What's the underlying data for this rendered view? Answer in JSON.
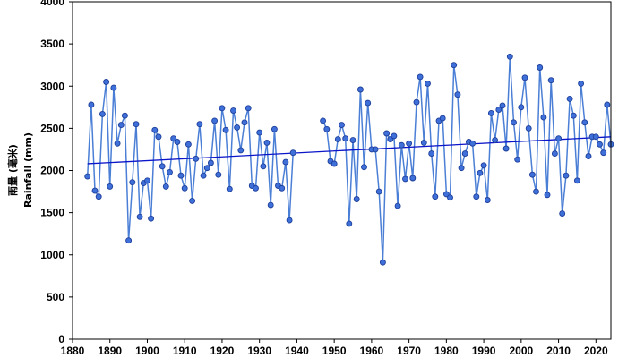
{
  "chart_data": {
    "type": "line",
    "ylabel": "雨量 (毫米)",
    "ylabel_en": "Rainfall (mm)",
    "xlim": [
      1880,
      2024
    ],
    "ylim": [
      0,
      4000
    ],
    "x_ticks": [
      "1880",
      "1890",
      "1900",
      "1910",
      "1920",
      "1930",
      "1940",
      "1950",
      "1960",
      "1970",
      "1980",
      "1990",
      "2000",
      "2010",
      "2020"
    ],
    "y_ticks": [
      "0",
      "500",
      "1000",
      "1500",
      "2000",
      "2500",
      "3000",
      "3500",
      "4000"
    ],
    "grid": false,
    "colors": {
      "line": "#4b7fd6",
      "marker_fill": "#3f6fd8",
      "marker_edge": "#1d3f9a",
      "trend": "#0a14c8",
      "axis": "#000000"
    },
    "series": [
      {
        "x": [
          1884,
          1885,
          1886,
          1887,
          1888,
          1889,
          1890,
          1891,
          1892,
          1893,
          1894,
          1895,
          1896,
          1897,
          1898,
          1899,
          1900,
          1901,
          1902,
          1903,
          1904,
          1905,
          1906,
          1907,
          1908,
          1909,
          1910,
          1911,
          1912,
          1913,
          1914,
          1915,
          1916,
          1917,
          1918,
          1919,
          1920,
          1921,
          1922,
          1923,
          1924,
          1925,
          1926,
          1927,
          1928,
          1929,
          1930,
          1931,
          1932,
          1933,
          1934,
          1935,
          1936,
          1937,
          1938,
          1939,
          1940
        ],
        "y": [
          1930,
          2780,
          1760,
          1690,
          2670,
          3050,
          1810,
          2980,
          2320,
          2540,
          2650,
          1170,
          1860,
          2550,
          1450,
          1850,
          1880,
          1430,
          2480,
          2400,
          2050,
          1810,
          1980,
          2380,
          2340,
          1940,
          1790,
          2310,
          1640,
          2140,
          2550,
          1940,
          2030,
          2090,
          2590,
          1950,
          2740,
          2480,
          1780,
          2710,
          2510,
          2240,
          2570,
          2740,
          1820,
          1790,
          2450,
          2050,
          2330,
          1590,
          2490,
          1820,
          1790,
          2100,
          1410,
          2210,
          null
        ]
      },
      {
        "x": [
          1947,
          1948,
          1949,
          1950,
          1951,
          1952,
          1953,
          1954,
          1955,
          1956,
          1957,
          1958,
          1959,
          1960,
          1961,
          1962,
          1963,
          1964,
          1965,
          1966,
          1967,
          1968,
          1969,
          1970,
          1971,
          1972,
          1973,
          1974,
          1975,
          1976,
          1977,
          1978,
          1979,
          1980,
          1981,
          1982,
          1983,
          1984,
          1985,
          1986,
          1987,
          1988,
          1989,
          1990,
          1991,
          1992,
          1993,
          1994,
          1995,
          1996,
          1997,
          1998,
          1999,
          2000,
          2001,
          2002,
          2003,
          2004,
          2005,
          2006,
          2007,
          2008,
          2009,
          2010,
          2011,
          2012,
          2013,
          2014,
          2015,
          2016,
          2017,
          2018,
          2019,
          2020,
          2021,
          2022,
          2023,
          2024
        ],
        "y": [
          2590,
          2490,
          2110,
          2080,
          2370,
          2540,
          2380,
          1370,
          2360,
          1660,
          2960,
          2040,
          2800,
          2250,
          2250,
          1750,
          910,
          2440,
          2370,
          2410,
          1580,
          2300,
          1900,
          2320,
          1910,
          2810,
          3110,
          2330,
          3030,
          2200,
          1690,
          2590,
          2620,
          1720,
          1680,
          3250,
          2900,
          2030,
          2200,
          2340,
          2320,
          1690,
          1970,
          2060,
          1650,
          2680,
          2360,
          2720,
          2770,
          2260,
          3350,
          2570,
          2130,
          2750,
          3100,
          2500,
          1950,
          1750,
          3220,
          2630,
          1710,
          3070,
          2200,
          2380,
          1490,
          1940,
          2850,
          2650,
          1880,
          3030,
          2570,
          2170,
          2400,
          2400,
          2310,
          2210,
          2780,
          2310
        ]
      }
    ],
    "trend": {
      "x": [
        1884,
        2024
      ],
      "y": [
        2080,
        2400
      ]
    }
  }
}
